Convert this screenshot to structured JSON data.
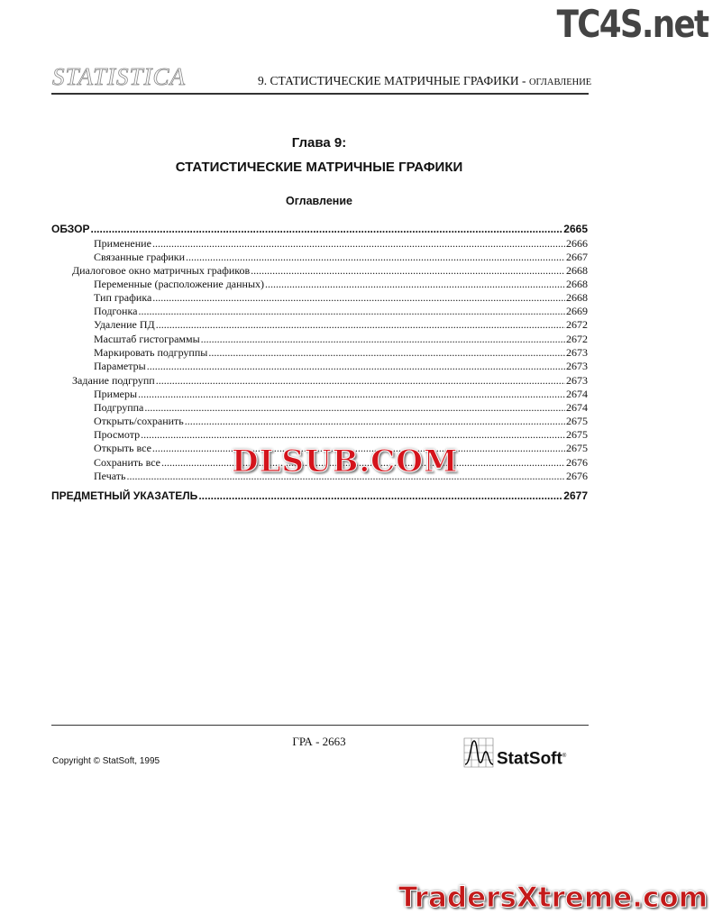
{
  "header": {
    "logo_text": "STATISTICA",
    "running_head_main": "9.  СТАТИСТИЧЕСКИЕ МАТРИЧНЫЕ ГРАФИКИ - ",
    "running_head_sub": "ОГЛАВЛЕНИЕ"
  },
  "chapter": {
    "number": "Глава 9:",
    "title": "СТАТИСТИЧЕСКИЕ МАТРИЧНЫЕ ГРАФИКИ",
    "toc_heading": "Оглавление"
  },
  "toc": [
    {
      "label": "ОБЗОР",
      "page": "2665",
      "level": 0
    },
    {
      "label": "Применение",
      "page": "2666",
      "level": 2
    },
    {
      "label": "Связанные графики",
      "page": "2667",
      "level": 2
    },
    {
      "label": "Диалоговое окно матричных графиков",
      "page": "2668",
      "level": 1
    },
    {
      "label": "Переменные (расположение данных)",
      "page": "2668",
      "level": 2
    },
    {
      "label": "Тип графика",
      "page": "2668",
      "level": 2
    },
    {
      "label": "Подгонка",
      "page": "2669",
      "level": 2
    },
    {
      "label": "Удаление ПД",
      "page": "2672",
      "level": 2
    },
    {
      "label": "Масштаб гистограммы",
      "page": "2672",
      "level": 2
    },
    {
      "label": "Маркировать подгруппы",
      "page": "2673",
      "level": 2
    },
    {
      "label": "Параметры",
      "page": "2673",
      "level": 2
    },
    {
      "label": "Задание подгрупп",
      "page": "2673",
      "level": 1
    },
    {
      "label": "Примеры",
      "page": "2674",
      "level": 2
    },
    {
      "label": "Подгруппа",
      "page": "2674",
      "level": 2
    },
    {
      "label": "Открыть/сохранить",
      "page": "2675",
      "level": 2
    },
    {
      "label": "Просмотр",
      "page": "2675",
      "level": 2
    },
    {
      "label": "Открыть все",
      "page": "2675",
      "level": 2
    },
    {
      "label": "Сохранить все",
      "page": "2676",
      "level": 2
    },
    {
      "label": "Печать",
      "page": "2676",
      "level": 2
    },
    {
      "label": "ПРЕДМЕТНЫЙ УКАЗАТЕЛЬ",
      "page": "2677",
      "level": 0
    }
  ],
  "footer": {
    "page_number": "ГРА - 2663",
    "copyright": "Copyright © StatSoft, 1995",
    "logo_text": "StatSoft",
    "logo_mark": "®"
  },
  "watermarks": {
    "top_right": "TC4S.net",
    "center": "DLSUB.COM",
    "bottom_right": "TradersXtreme.com"
  }
}
